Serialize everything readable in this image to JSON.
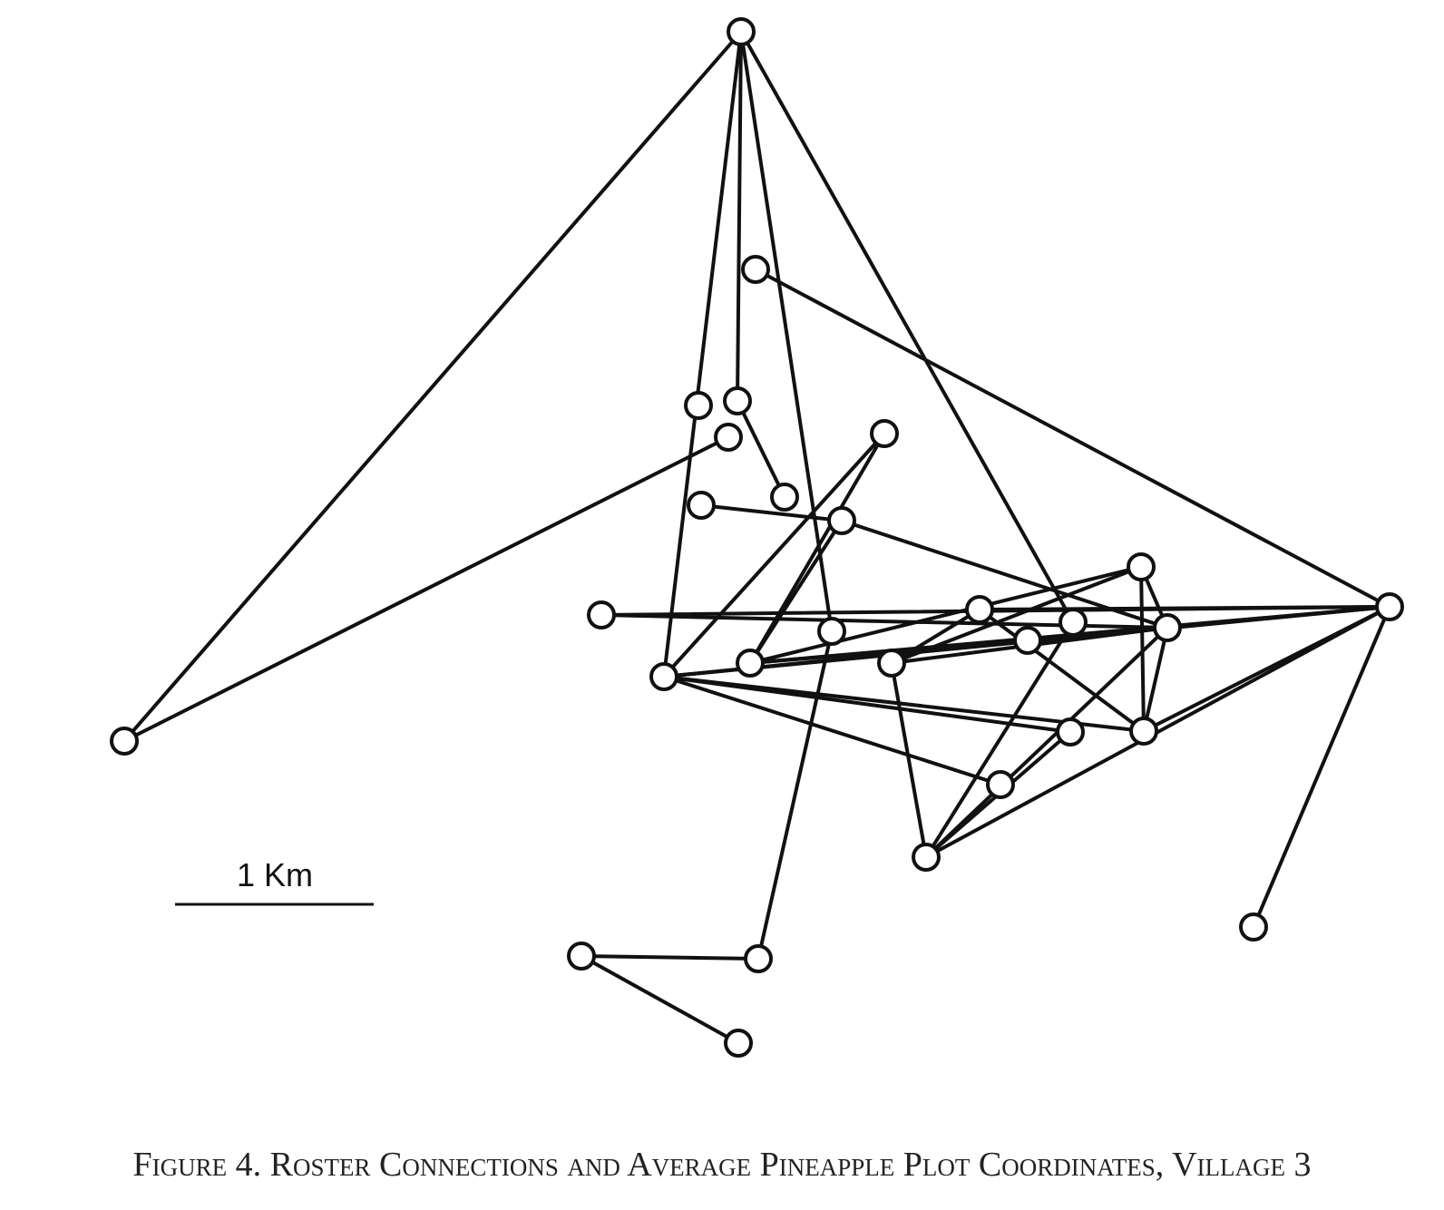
{
  "scale_bar": {
    "label": "1 Km"
  },
  "caption": "Figure 4. Roster Connections and Average Pineapple Plot Coordinates, Village 3",
  "network": {
    "node_count": 29,
    "edge_count": 45,
    "nodes": [
      "n1",
      "n2",
      "n3",
      "n4",
      "n5",
      "n6",
      "n7",
      "n8",
      "n9",
      "n10",
      "n11",
      "n12",
      "n13",
      "n14",
      "n15",
      "n16",
      "n17",
      "n18",
      "n19",
      "n20",
      "n21",
      "n22",
      "n23",
      "n24",
      "n25",
      "n26",
      "n27",
      "n28",
      "n29"
    ],
    "edges": [
      [
        "n1",
        "n21"
      ],
      [
        "n1",
        "n13"
      ],
      [
        "n1",
        "n4"
      ],
      [
        "n1",
        "n20"
      ],
      [
        "n1",
        "n16"
      ],
      [
        "n21",
        "n6"
      ],
      [
        "n2",
        "n25"
      ],
      [
        "n4",
        "n8"
      ],
      [
        "n3"
      ],
      [
        "n7",
        "n9"
      ],
      [
        "n7",
        "n24"
      ],
      [
        "n5",
        "n26"
      ],
      [
        "n10",
        "n27"
      ],
      [
        "n10",
        "n15"
      ],
      [
        "n10",
        "n14"
      ],
      [
        "n12",
        "n25"
      ],
      [
        "n11",
        "n15"
      ],
      [
        "n11",
        "n26"
      ],
      [
        "n13",
        "n9"
      ],
      [
        "n13",
        "n14"
      ],
      [
        "n13",
        "n15"
      ],
      [
        "n13",
        "n17"
      ],
      [
        "n13",
        "n18"
      ],
      [
        "n13",
        "n22"
      ],
      [
        "n13",
        "n23"
      ],
      [
        "n13",
        "n19"
      ],
      [
        "n16",
        "n9"
      ],
      [
        "n16",
        "n28"
      ],
      [
        "n16",
        "n25"
      ],
      [
        "n14",
        "n25"
      ],
      [
        "n14",
        "n22"
      ],
      [
        "n14",
        "n24"
      ],
      [
        "n24",
        "n22"
      ],
      [
        "n24",
        "n19"
      ],
      [
        "n24",
        "n25"
      ],
      [
        "n17",
        "n19"
      ],
      [
        "n17",
        "n15"
      ],
      [
        "n17",
        "n9"
      ],
      [
        "n18",
        "n20"
      ],
      [
        "n22",
        "n23"
      ],
      [
        "n20",
        "n25"
      ],
      [
        "n20",
        "n24"
      ],
      [
        "n19",
        "n24"
      ],
      [
        "n26",
        "n27"
      ],
      [
        "n26",
        "n29"
      ]
    ]
  }
}
